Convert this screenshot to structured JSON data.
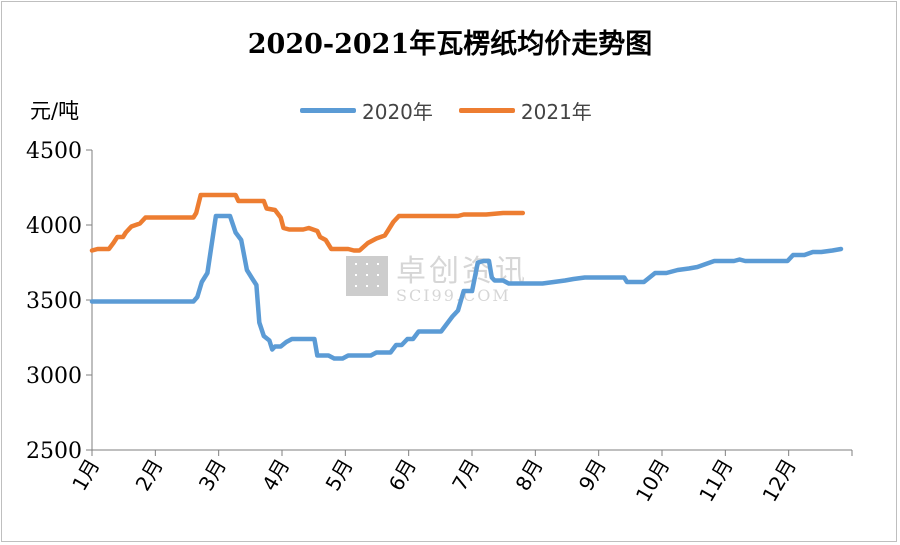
{
  "chart_data": {
    "type": "line",
    "title": "2020-2021年瓦楞纸均价走势图",
    "ylabel": "元/吨",
    "xlabel": "",
    "ylim": [
      2500,
      4500
    ],
    "y_ticks": [
      "4500",
      "4000",
      "3500",
      "3000",
      "2500"
    ],
    "categories": [
      "1月",
      "2月",
      "3月",
      "4月",
      "5月",
      "6月",
      "7月",
      "8月",
      "9月",
      "10月",
      "11月",
      "12月"
    ],
    "legend_position": "top",
    "grid": false,
    "series": [
      {
        "name": "2020年",
        "color": "#5b9bd5",
        "points": [
          [
            0.0,
            3490
          ],
          [
            0.5,
            3490
          ],
          [
            1.0,
            3490
          ],
          [
            1.5,
            3490
          ],
          [
            1.8,
            3490
          ],
          [
            1.87,
            3520
          ],
          [
            1.95,
            3620
          ],
          [
            2.05,
            3680
          ],
          [
            2.2,
            4060
          ],
          [
            2.45,
            4060
          ],
          [
            2.55,
            3950
          ],
          [
            2.65,
            3900
          ],
          [
            2.75,
            3700
          ],
          [
            2.85,
            3640
          ],
          [
            2.92,
            3600
          ],
          [
            2.97,
            3350
          ],
          [
            3.05,
            3260
          ],
          [
            3.15,
            3230
          ],
          [
            3.2,
            3170
          ],
          [
            3.25,
            3190
          ],
          [
            3.35,
            3190
          ],
          [
            3.45,
            3220
          ],
          [
            3.55,
            3240
          ],
          [
            3.95,
            3240
          ],
          [
            4.0,
            3130
          ],
          [
            4.2,
            3130
          ],
          [
            4.3,
            3110
          ],
          [
            4.45,
            3110
          ],
          [
            4.55,
            3130
          ],
          [
            4.95,
            3130
          ],
          [
            5.05,
            3150
          ],
          [
            5.3,
            3150
          ],
          [
            5.4,
            3200
          ],
          [
            5.5,
            3200
          ],
          [
            5.6,
            3240
          ],
          [
            5.7,
            3240
          ],
          [
            5.8,
            3290
          ],
          [
            6.2,
            3290
          ],
          [
            6.4,
            3390
          ],
          [
            6.5,
            3430
          ],
          [
            6.6,
            3560
          ],
          [
            6.75,
            3560
          ],
          [
            6.85,
            3750
          ],
          [
            6.95,
            3760
          ],
          [
            7.05,
            3760
          ],
          [
            7.1,
            3650
          ],
          [
            7.15,
            3630
          ],
          [
            7.3,
            3630
          ],
          [
            7.4,
            3610
          ],
          [
            8.0,
            3610
          ],
          [
            8.2,
            3620
          ],
          [
            8.4,
            3630
          ],
          [
            8.55,
            3640
          ],
          [
            8.75,
            3650
          ],
          [
            9.0,
            3650
          ],
          [
            9.45,
            3650
          ],
          [
            9.5,
            3620
          ],
          [
            9.8,
            3620
          ],
          [
            9.9,
            3650
          ],
          [
            10.0,
            3680
          ],
          [
            10.2,
            3680
          ],
          [
            10.4,
            3700
          ],
          [
            10.6,
            3710
          ],
          [
            10.75,
            3720
          ],
          [
            10.9,
            3740
          ],
          [
            11.05,
            3760
          ],
          [
            11.4,
            3760
          ],
          [
            11.5,
            3770
          ],
          [
            11.6,
            3760
          ],
          [
            12.0,
            3760
          ],
          [
            12.35,
            3760
          ],
          [
            12.45,
            3800
          ],
          [
            12.65,
            3800
          ],
          [
            12.8,
            3820
          ],
          [
            12.95,
            3820
          ],
          [
            13.15,
            3830
          ],
          [
            13.3,
            3840
          ]
        ]
      },
      {
        "name": "2021年",
        "color": "#ed7d31",
        "points": [
          [
            0.0,
            3830
          ],
          [
            0.1,
            3840
          ],
          [
            0.3,
            3840
          ],
          [
            0.38,
            3880
          ],
          [
            0.45,
            3920
          ],
          [
            0.55,
            3920
          ],
          [
            0.6,
            3950
          ],
          [
            0.7,
            3990
          ],
          [
            0.85,
            4010
          ],
          [
            0.95,
            4050
          ],
          [
            1.2,
            4050
          ],
          [
            1.8,
            4050
          ],
          [
            1.85,
            4080
          ],
          [
            1.93,
            4200
          ],
          [
            2.3,
            4200
          ],
          [
            2.55,
            4200
          ],
          [
            2.6,
            4160
          ],
          [
            2.95,
            4160
          ],
          [
            3.05,
            4160
          ],
          [
            3.1,
            4110
          ],
          [
            3.25,
            4100
          ],
          [
            3.35,
            4050
          ],
          [
            3.4,
            3980
          ],
          [
            3.5,
            3970
          ],
          [
            3.75,
            3970
          ],
          [
            3.85,
            3980
          ],
          [
            4.0,
            3960
          ],
          [
            4.05,
            3920
          ],
          [
            4.15,
            3900
          ],
          [
            4.25,
            3840
          ],
          [
            4.55,
            3840
          ],
          [
            4.65,
            3830
          ],
          [
            4.75,
            3830
          ],
          [
            4.9,
            3880
          ],
          [
            5.05,
            3910
          ],
          [
            5.2,
            3930
          ],
          [
            5.25,
            3960
          ],
          [
            5.35,
            4020
          ],
          [
            5.45,
            4060
          ],
          [
            5.7,
            4060
          ],
          [
            6.0,
            4060
          ],
          [
            6.5,
            4060
          ],
          [
            6.6,
            4070
          ],
          [
            7.0,
            4070
          ],
          [
            7.3,
            4080
          ],
          [
            7.65,
            4080
          ]
        ]
      }
    ]
  }
}
